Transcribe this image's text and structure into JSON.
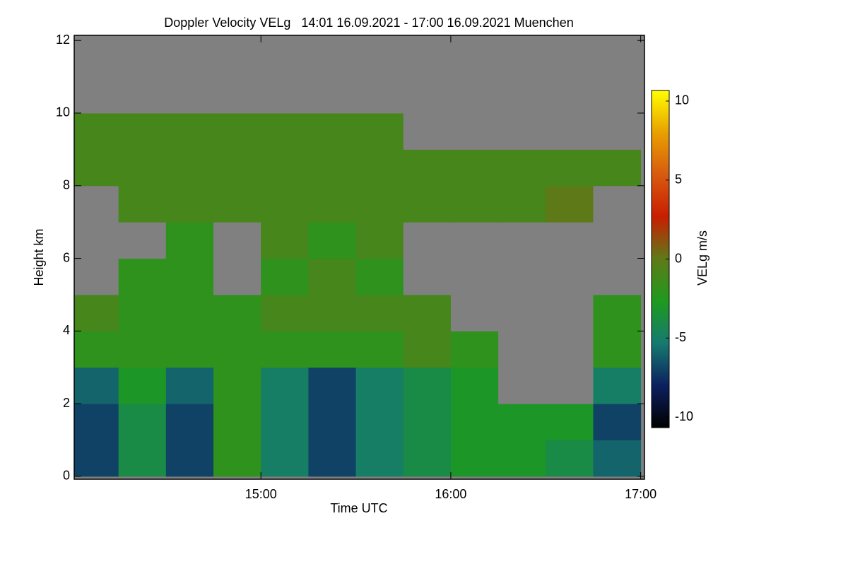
{
  "chart_data": {
    "type": "heatmap",
    "title": "Doppler Velocity VELg   14:01 16.09.2021 - 17:00 16.09.2021 Muenchen",
    "x_label": "Time UTC",
    "y_label": "Height km",
    "colorbar_label": "VELg m/s",
    "xlim": [
      14.0167,
      17.02
    ],
    "xticks": [
      {
        "value": 15,
        "label": "15:00"
      },
      {
        "value": 16,
        "label": "16:00"
      },
      {
        "value": 17,
        "label": "17:00"
      }
    ],
    "ylim": [
      -0.08,
      12.14
    ],
    "yticks": [
      0,
      2,
      4,
      6,
      8,
      10,
      12
    ],
    "xbins": [
      14.0167,
      14.25,
      14.5,
      14.75,
      15,
      15.25,
      15.5,
      15.75,
      16,
      16.25,
      16.5,
      16.75,
      17
    ],
    "ybins": [
      0,
      1,
      2,
      3,
      4,
      5,
      6,
      7,
      8,
      9,
      10,
      11,
      12
    ],
    "values": [
      [
        -7,
        -4,
        -7,
        -2,
        -5,
        -7,
        -5,
        -4,
        -3,
        -3,
        -4,
        -6
      ],
      [
        -7,
        -4,
        -7,
        -2,
        -5,
        -7,
        -5,
        -4,
        -3,
        -3,
        -3,
        -7
      ],
      [
        -6,
        -3,
        -6,
        -2,
        -5,
        -7,
        -5,
        -4,
        -3,
        null,
        null,
        -5
      ],
      [
        -2,
        -2,
        -2,
        -2,
        -2,
        -2,
        -2,
        -1,
        -2,
        null,
        null,
        -2
      ],
      [
        -1,
        -2,
        -2,
        -2,
        -1,
        -1,
        -1,
        -1,
        null,
        null,
        null,
        -2
      ],
      [
        null,
        -2,
        -2,
        null,
        -2,
        -1,
        -2,
        null,
        null,
        null,
        null,
        null
      ],
      [
        null,
        null,
        -2,
        null,
        -1,
        -2,
        -1,
        null,
        null,
        null,
        null,
        null
      ],
      [
        null,
        -1,
        -1,
        -1,
        -1,
        -1,
        -1,
        -1,
        -1,
        -1,
        0,
        null
      ],
      [
        -1,
        -1,
        -1,
        -1,
        -1,
        -1,
        -1,
        -1,
        -1,
        -1,
        -1,
        -1
      ],
      [
        -1,
        -1,
        -1,
        -1,
        -1,
        -1,
        -1,
        null,
        null,
        null,
        null,
        null
      ],
      [
        null,
        null,
        null,
        null,
        null,
        null,
        null,
        null,
        null,
        null,
        null,
        null
      ],
      [
        null,
        null,
        null,
        null,
        null,
        null,
        null,
        null,
        null,
        null,
        null,
        null
      ]
    ],
    "colorbar_lim": [
      -10.67,
      10.67
    ],
    "colorbar_ticks": [
      -10,
      -5,
      0,
      5,
      10
    ],
    "colormap": [
      "#000000",
      "#0c2060",
      "#167a70",
      "#1e9a1e",
      "#5e7a18",
      "#c81e00",
      "#d85a10",
      "#e8a000",
      "#ffff00"
    ],
    "null_color": "#808080"
  }
}
